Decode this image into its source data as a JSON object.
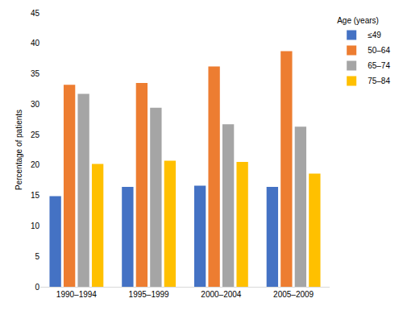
{
  "chart_data": {
    "type": "bar",
    "y_label": "Percentage of patients",
    "legend_title": "Age (years)",
    "categories": [
      "1990–1994",
      "1995–1999",
      "2000–2004",
      "2005–2009"
    ],
    "series": [
      {
        "name": "≤49",
        "color": "#4472c4",
        "values": [
          14.9,
          16.4,
          16.6,
          16.4
        ]
      },
      {
        "name": "50–64",
        "color": "#ed7d31",
        "values": [
          33.2,
          33.5,
          36.2,
          38.7
        ]
      },
      {
        "name": "65–74",
        "color": "#a5a5a5",
        "values": [
          31.7,
          29.4,
          26.7,
          26.3
        ]
      },
      {
        "name": "75–84",
        "color": "#ffc000",
        "values": [
          20.2,
          20.7,
          20.5,
          18.6
        ]
      }
    ],
    "ylim": [
      0,
      45
    ],
    "yticks": [
      0,
      5,
      10,
      15,
      20,
      25,
      30,
      35,
      40,
      45
    ],
    "grid": false,
    "legend": "top-right"
  }
}
